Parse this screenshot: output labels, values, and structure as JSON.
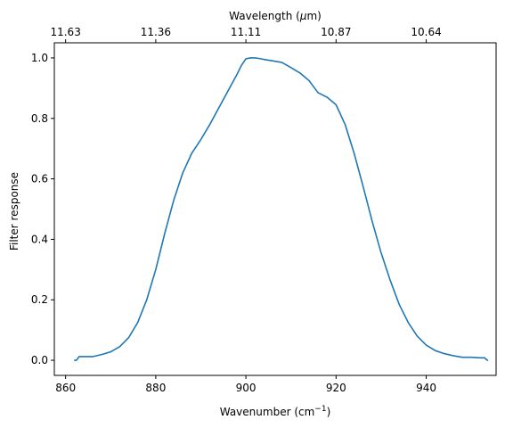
{
  "chart_data": {
    "type": "line",
    "xlabel": "Wavenumber (cm",
    "xlabel_superscript": "−1",
    "xlabel_suffix": ")",
    "x2label_prefix": "Wavelength (",
    "x2label_symbol": "μ",
    "x2label_suffix": "m)",
    "ylabel": "Filter response",
    "xlim": [
      857.5,
      955.5
    ],
    "ylim": [
      -0.05,
      1.05
    ],
    "x_ticks": [
      860,
      880,
      900,
      920,
      940
    ],
    "x_tick_labels": [
      "860",
      "880",
      "900",
      "920",
      "940"
    ],
    "y_ticks": [
      0.0,
      0.2,
      0.4,
      0.6,
      0.8,
      1.0
    ],
    "y_tick_labels": [
      "0.0",
      "0.2",
      "0.4",
      "0.6",
      "0.8",
      "1.0"
    ],
    "top_axis_ticks": [
      {
        "wavenumber": 860.0,
        "label": "11.63"
      },
      {
        "wavenumber": 880.0,
        "label": "11.36"
      },
      {
        "wavenumber": 900.0,
        "label": "11.11"
      },
      {
        "wavenumber": 920.0,
        "label": "10.87"
      },
      {
        "wavenumber": 940.0,
        "label": "10.64"
      }
    ],
    "grid": false,
    "line_color": "#1f77b4",
    "series": [
      {
        "x": [
          862.0,
          862.4,
          862.8,
          863.0,
          864.0,
          866.0,
          868.0,
          870.0,
          872.0,
          874.0,
          876.0,
          878.0,
          880.0,
          882.0,
          884.0,
          886.0,
          888.0,
          890.0,
          892.0,
          894.0,
          896.0,
          898.0,
          899.0,
          900.0,
          901.0,
          902.0,
          903.0,
          904.0,
          906.0,
          908.0,
          910.0,
          912.0,
          914.0,
          915.0,
          916.0,
          918.0,
          920.0,
          922.0,
          924.0,
          926.0,
          928.0,
          930.0,
          932.0,
          934.0,
          936.0,
          938.0,
          940.0,
          942.0,
          944.0,
          946.0,
          948.0,
          950.0,
          952.0,
          953.0,
          953.3,
          953.6
        ],
        "y": [
          0.0,
          0.0,
          0.008,
          0.012,
          0.012,
          0.012,
          0.019,
          0.028,
          0.045,
          0.075,
          0.125,
          0.2,
          0.3,
          0.42,
          0.53,
          0.62,
          0.685,
          0.73,
          0.78,
          0.835,
          0.89,
          0.945,
          0.975,
          0.997,
          1.0,
          1.0,
          0.998,
          0.995,
          0.99,
          0.985,
          0.968,
          0.95,
          0.925,
          0.905,
          0.885,
          0.87,
          0.845,
          0.78,
          0.685,
          0.575,
          0.46,
          0.355,
          0.265,
          0.185,
          0.125,
          0.08,
          0.05,
          0.032,
          0.022,
          0.015,
          0.01,
          0.01,
          0.008,
          0.008,
          0.003,
          0.0
        ]
      }
    ]
  }
}
